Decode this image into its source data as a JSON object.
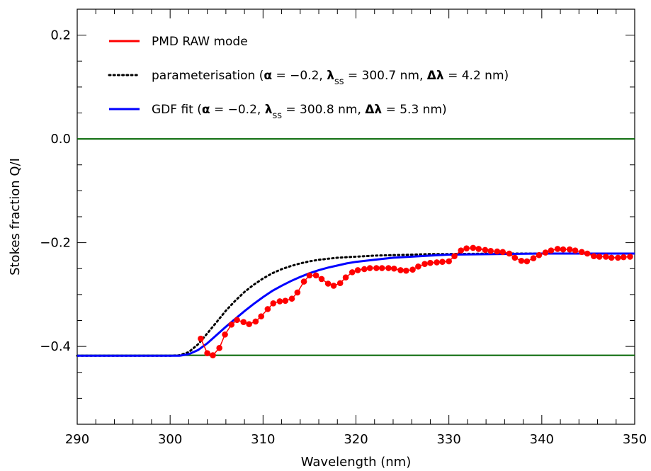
{
  "chart_data": {
    "type": "line",
    "xlabel": "Wavelength (nm)",
    "ylabel": "Stokes fraction Q/I",
    "xlim": [
      290,
      350
    ],
    "ylim": [
      -0.55,
      0.25
    ],
    "x_major_ticks": [
      290,
      300,
      310,
      320,
      330,
      340,
      350
    ],
    "x_tick_labels": [
      "290",
      "300",
      "310",
      "320",
      "330",
      "340",
      "350"
    ],
    "y_major_ticks": [
      0.2,
      0.0,
      -0.2,
      -0.4
    ],
    "y_tick_labels": [
      "0.2",
      "0.0",
      "−0.2",
      "−0.4"
    ],
    "grid": false,
    "legend_position": "top-left",
    "legend": {
      "raw": {
        "label": "PMD RAW mode",
        "color": "#ff0000"
      },
      "param": {
        "prefix": "parameterisation (",
        "alpha_sym": "α",
        "alpha_eq": " = −0.2, ",
        "lambda_sym": "λ",
        "sub": "ss",
        "lambda_eq": " = 300.7 nm, ",
        "dl_sym": "Δλ",
        "dl_eq": " = 4.2 nm)",
        "color": "#000000"
      },
      "gdf": {
        "prefix": "GDF fit (",
        "alpha_sym": "α",
        "alpha_eq": " = −0.2, ",
        "lambda_sym": "λ",
        "sub": "ss",
        "lambda_eq": " = 300.8 nm, ",
        "dl_sym": "Δλ",
        "dl_eq": " = 5.3 nm)",
        "color": "#0000ff"
      }
    },
    "horizontal_lines": [
      {
        "y": 0.0,
        "color": "#006400"
      },
      {
        "y": -0.417,
        "color": "#006400"
      }
    ],
    "series": [
      {
        "name": "PMD RAW mode",
        "color": "#ff0000",
        "style": "line+markers",
        "x": [
          303.3,
          304.0,
          304.6,
          305.3,
          305.9,
          306.6,
          307.2,
          307.9,
          308.5,
          309.2,
          309.8,
          310.5,
          311.1,
          311.8,
          312.4,
          313.1,
          313.7,
          314.4,
          315.0,
          315.7,
          316.3,
          317.0,
          317.6,
          318.3,
          318.9,
          319.6,
          320.2,
          320.9,
          321.5,
          322.2,
          322.8,
          323.5,
          324.1,
          324.8,
          325.4,
          326.1,
          326.7,
          327.4,
          328.0,
          328.7,
          329.3,
          330.0,
          330.6,
          331.3,
          331.9,
          332.6,
          333.2,
          333.9,
          334.5,
          335.2,
          335.8,
          336.5,
          337.1,
          337.8,
          338.4,
          339.1,
          339.7,
          340.4,
          341.0,
          341.7,
          342.3,
          343.0,
          343.6,
          344.3,
          344.9,
          345.6,
          346.2,
          346.9,
          347.5,
          348.2,
          348.8,
          349.5
        ],
        "y": [
          -0.385,
          -0.413,
          -0.417,
          -0.403,
          -0.377,
          -0.358,
          -0.349,
          -0.353,
          -0.357,
          -0.352,
          -0.342,
          -0.328,
          -0.317,
          -0.313,
          -0.312,
          -0.308,
          -0.296,
          -0.275,
          -0.263,
          -0.263,
          -0.27,
          -0.279,
          -0.283,
          -0.278,
          -0.267,
          -0.257,
          -0.253,
          -0.251,
          -0.249,
          -0.249,
          -0.249,
          -0.249,
          -0.25,
          -0.253,
          -0.254,
          -0.252,
          -0.246,
          -0.241,
          -0.239,
          -0.238,
          -0.237,
          -0.236,
          -0.226,
          -0.215,
          -0.211,
          -0.21,
          -0.212,
          -0.214,
          -0.216,
          -0.217,
          -0.218,
          -0.221,
          -0.229,
          -0.235,
          -0.236,
          -0.23,
          -0.224,
          -0.219,
          -0.215,
          -0.212,
          -0.213,
          -0.213,
          -0.215,
          -0.218,
          -0.221,
          -0.226,
          -0.227,
          -0.227,
          -0.229,
          -0.229,
          -0.228,
          -0.227
        ]
      },
      {
        "name": "parameterisation",
        "color": "#000000",
        "style": "dotted",
        "x": [
          290,
          300,
          301,
          302,
          303,
          304,
          305,
          306,
          307,
          308,
          309,
          310,
          311,
          312,
          313,
          314,
          315,
          316,
          317,
          318,
          319,
          320,
          322,
          324,
          326,
          328,
          330,
          335,
          340,
          345,
          350
        ],
        "y": [
          -0.418,
          -0.418,
          -0.417,
          -0.411,
          -0.396,
          -0.375,
          -0.353,
          -0.331,
          -0.312,
          -0.295,
          -0.281,
          -0.269,
          -0.259,
          -0.251,
          -0.245,
          -0.24,
          -0.236,
          -0.233,
          -0.231,
          -0.229,
          -0.228,
          -0.227,
          -0.225,
          -0.224,
          -0.223,
          -0.222,
          -0.222,
          -0.221,
          -0.221,
          -0.221,
          -0.221
        ]
      },
      {
        "name": "GDF fit",
        "color": "#0000ff",
        "style": "solid",
        "x": [
          290,
          300,
          301,
          302,
          303,
          304,
          305,
          306,
          307,
          308,
          309,
          310,
          311,
          312,
          313,
          314,
          315,
          316,
          317,
          318,
          319,
          320,
          322,
          324,
          326,
          328,
          330,
          335,
          340,
          345,
          350
        ],
        "y": [
          -0.418,
          -0.418,
          -0.418,
          -0.415,
          -0.407,
          -0.394,
          -0.378,
          -0.362,
          -0.347,
          -0.332,
          -0.318,
          -0.305,
          -0.293,
          -0.283,
          -0.274,
          -0.266,
          -0.259,
          -0.253,
          -0.248,
          -0.244,
          -0.24,
          -0.237,
          -0.233,
          -0.229,
          -0.227,
          -0.225,
          -0.223,
          -0.222,
          -0.221,
          -0.221,
          -0.221
        ]
      }
    ]
  }
}
